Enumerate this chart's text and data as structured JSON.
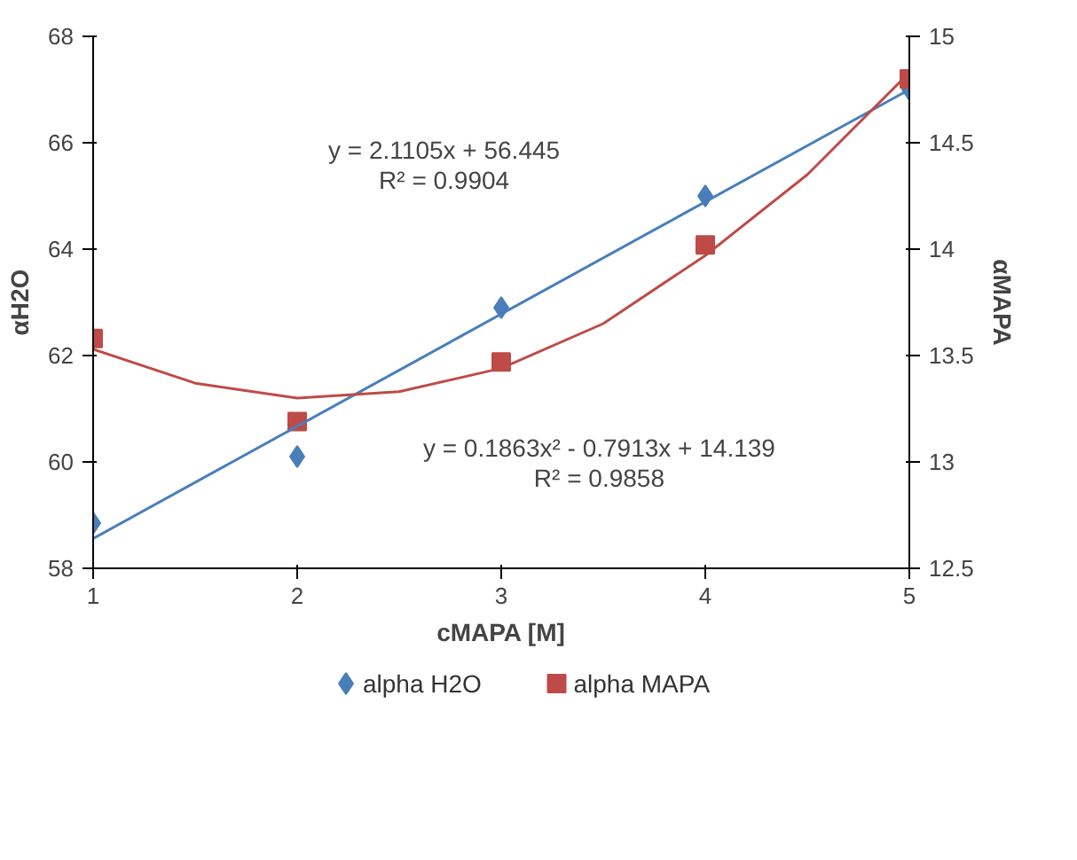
{
  "chart_data": {
    "type": "scatter",
    "xlabel": "cMAPA [M]",
    "ylabel": "αH2O",
    "y2label": "αMAPA",
    "x": [
      1,
      2,
      3,
      4,
      5
    ],
    "series": [
      {
        "name": "alpha  H2O",
        "color": "#4a7ebb",
        "marker": "diamond",
        "values": [
          58.85,
          60.1,
          62.9,
          65.0,
          67.0
        ]
      },
      {
        "name": "alpha  MAPA",
        "color": "#be4b48",
        "marker": "square",
        "axis": "y2",
        "values": [
          13.58,
          13.19,
          13.47,
          14.02,
          14.8
        ]
      },
      {
        "type": "line",
        "color": "#4a7ebb",
        "x": [
          1,
          5
        ],
        "values": [
          58.56,
          67.0
        ]
      },
      {
        "type": "line",
        "color": "#be4b48",
        "axis": "y2",
        "x": [
          1,
          1.5,
          2,
          2.5,
          3,
          3.5,
          4,
          4.5,
          5
        ],
        "values": [
          13.53,
          13.37,
          13.3,
          13.33,
          13.44,
          13.65,
          13.97,
          14.35,
          14.83
        ]
      }
    ],
    "xlim": [
      1,
      5
    ],
    "xticks": [
      1,
      2,
      3,
      4,
      5
    ],
    "ylim": [
      58,
      68
    ],
    "yticks": [
      58,
      60,
      62,
      64,
      66,
      68
    ],
    "y2lim": [
      12.5,
      15
    ],
    "y2ticks": [
      {
        "value": 12.5,
        "label": "12.5"
      },
      {
        "value": 13,
        "label": "13"
      },
      {
        "value": 13.5,
        "label": "13.5"
      },
      {
        "value": 14,
        "label": "14"
      },
      {
        "value": 14.5,
        "label": "14.5"
      },
      {
        "value": 15,
        "label": "15"
      }
    ],
    "annotations": [
      "y = 2.1105x + 56.445\nR² = 0.9904",
      "y = 0.1863x² - 0.7913x + 14.139\nR² = 0.9858"
    ],
    "legend": "bottom",
    "grid": false
  }
}
